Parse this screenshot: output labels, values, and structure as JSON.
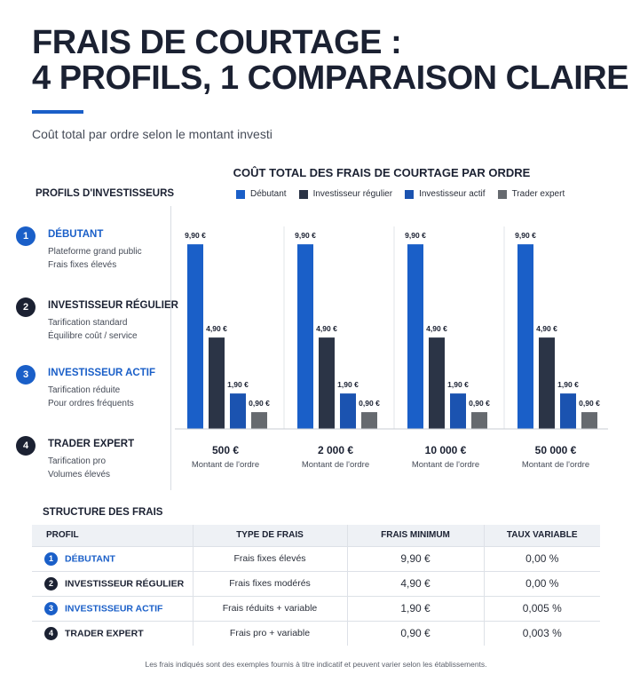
{
  "header": {
    "title_line1": "FRAIS DE COURTAGE :",
    "title_line2": "4 PROFILS, 1 COMPARAISON CLAIRE",
    "subtitle": "Coût total par ordre selon le montant investi"
  },
  "colors": {
    "debutant": "#1a5fc8",
    "regulier": "#2b3446",
    "actif": "#1b53b0",
    "expert": "#666a6f"
  },
  "profiles": {
    "title": "PROFILS D'INVESTISSEURS",
    "items": [
      {
        "num": "1",
        "name": "DÉBUTANT",
        "desc1": "Plateforme grand public",
        "desc2": "Frais fixes élevés",
        "color": "#1a5fc8",
        "name_color": "#1a5fc8"
      },
      {
        "num": "2",
        "name": "INVESTISSEUR RÉGULIER",
        "desc1": "Tarification standard",
        "desc2": "Équilibre coût / service",
        "color": "#1b2132",
        "name_color": "#1b2132"
      },
      {
        "num": "3",
        "name": "INVESTISSEUR ACTIF",
        "desc1": "Tarification réduite",
        "desc2": "Pour ordres fréquents",
        "color": "#1a5fc8",
        "name_color": "#1a5fc8"
      },
      {
        "num": "4",
        "name": "TRADER EXPERT",
        "desc1": "Tarification pro",
        "desc2": "Volumes élevés",
        "color": "#1b2132",
        "name_color": "#1b2132"
      }
    ]
  },
  "chart_data": {
    "type": "bar",
    "title": "COÛT TOTAL DES FRAIS DE COURTAGE PAR ORDRE",
    "categories": [
      "500 €",
      "2 000 €",
      "10 000 €",
      "50 000 €"
    ],
    "category_sublabel": "Montant de l'ordre",
    "series": [
      {
        "name": "Débutant",
        "values": [
          9.9,
          9.9,
          9.9,
          9.9
        ],
        "labels": [
          "9,90 €",
          "9,90 €",
          "9,90 €",
          "9,90 €"
        ],
        "color": "#1a5fc8"
      },
      {
        "name": "Investisseur régulier",
        "values": [
          4.9,
          4.9,
          4.9,
          4.9
        ],
        "labels": [
          "4,90 €",
          "4,90 €",
          "4,90 €",
          "4,90 €"
        ],
        "color": "#2b3446"
      },
      {
        "name": "Investisseur actif",
        "values": [
          1.9,
          1.9,
          1.9,
          1.9
        ],
        "labels": [
          "1,90 €",
          "1,90 €",
          "1,90 €",
          "1,90 €"
        ],
        "color": "#1b53b0"
      },
      {
        "name": "Trader expert",
        "values": [
          0.9,
          0.9,
          0.9,
          0.9
        ],
        "labels": [
          "0,90 €",
          "0,90 €",
          "0,90 €",
          "0,90 €"
        ],
        "color": "#666a6f"
      }
    ],
    "ylim": [
      0,
      10
    ],
    "grid": false,
    "legend": "top"
  },
  "table": {
    "title": "STRUCTURE DES FRAIS",
    "headers": [
      "PROFIL",
      "TYPE DE FRAIS",
      "FRAIS MINIMUM",
      "TAUX VARIABLE"
    ],
    "rows": [
      {
        "num": "1",
        "profile": "DÉBUTANT",
        "type": "Frais fixes élevés",
        "min": "9,90 €",
        "rate": "0,00 %",
        "num_color": "#1a5fc8",
        "name_color": "#1a5fc8"
      },
      {
        "num": "2",
        "profile": "INVESTISSEUR RÉGULIER",
        "type": "Frais fixes modérés",
        "min": "4,90 €",
        "rate": "0,00 %",
        "num_color": "#1b2132",
        "name_color": "#1b2132"
      },
      {
        "num": "3",
        "profile": "INVESTISSEUR ACTIF",
        "type": "Frais réduits + variable",
        "min": "1,90 €",
        "rate": "0,005 %",
        "num_color": "#1a5fc8",
        "name_color": "#1a5fc8"
      },
      {
        "num": "4",
        "profile": "TRADER EXPERT",
        "type": "Frais pro + variable",
        "min": "0,90 €",
        "rate": "0,003 %",
        "num_color": "#1b2132",
        "name_color": "#1b2132"
      }
    ]
  },
  "footnote": "Les frais indiqués sont des exemples fournis à titre indicatif et peuvent varier selon les établissements."
}
